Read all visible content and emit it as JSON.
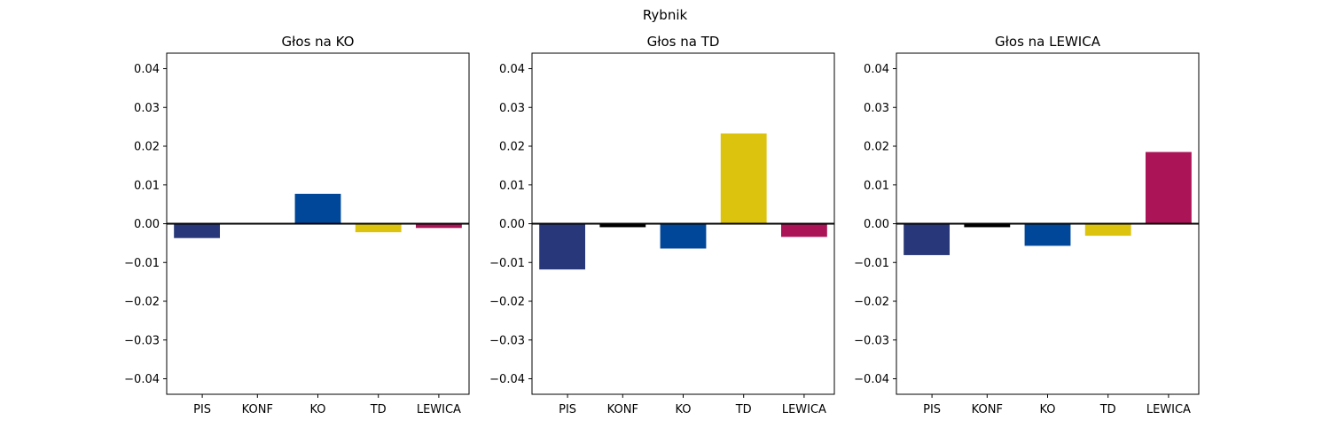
{
  "figure": {
    "title": "Rybnik"
  },
  "chart_data": [
    {
      "type": "bar",
      "title": "Głos na KO",
      "categories": [
        "PIS",
        "KONF",
        "KO",
        "TD",
        "LEWICA"
      ],
      "values": [
        -0.0037,
        0.0,
        0.0077,
        -0.0022,
        -0.0011
      ],
      "colors": [
        "#283779",
        "#000000",
        "#00479a",
        "#dcc40e",
        "#ab1457"
      ],
      "ylim": [
        -0.044,
        0.044
      ],
      "yticks": [
        "0.04",
        "0.03",
        "0.02",
        "0.01",
        "0.00",
        "−0.01",
        "−0.02",
        "−0.03",
        "−0.04"
      ],
      "ytick_values": [
        0.04,
        0.03,
        0.02,
        0.01,
        0.0,
        -0.01,
        -0.02,
        -0.03,
        -0.04
      ],
      "zero_line": true,
      "grid": false
    },
    {
      "type": "bar",
      "title": "Głos na TD",
      "categories": [
        "PIS",
        "KONF",
        "KO",
        "TD",
        "LEWICA"
      ],
      "values": [
        -0.0118,
        -0.0009,
        -0.0064,
        0.0233,
        -0.0034
      ],
      "colors": [
        "#283779",
        "#000000",
        "#00479a",
        "#dcc40e",
        "#ab1457"
      ],
      "ylim": [
        -0.044,
        0.044
      ],
      "yticks": [
        "0.04",
        "0.03",
        "0.02",
        "0.01",
        "0.00",
        "−0.01",
        "−0.02",
        "−0.03",
        "−0.04"
      ],
      "ytick_values": [
        0.04,
        0.03,
        0.02,
        0.01,
        0.0,
        -0.01,
        -0.02,
        -0.03,
        -0.04
      ],
      "zero_line": true,
      "grid": false
    },
    {
      "type": "bar",
      "title": "Głos na LEWICA",
      "categories": [
        "PIS",
        "KONF",
        "KO",
        "TD",
        "LEWICA"
      ],
      "values": [
        -0.0081,
        -0.0009,
        -0.0057,
        -0.0031,
        0.0185
      ],
      "colors": [
        "#283779",
        "#000000",
        "#00479a",
        "#dcc40e",
        "#ab1457"
      ],
      "ylim": [
        -0.044,
        0.044
      ],
      "yticks": [
        "0.04",
        "0.03",
        "0.02",
        "0.01",
        "0.00",
        "−0.01",
        "−0.02",
        "−0.03",
        "−0.04"
      ],
      "ytick_values": [
        0.04,
        0.03,
        0.02,
        0.01,
        0.0,
        -0.01,
        -0.02,
        -0.03,
        -0.04
      ],
      "zero_line": true,
      "grid": false
    }
  ]
}
